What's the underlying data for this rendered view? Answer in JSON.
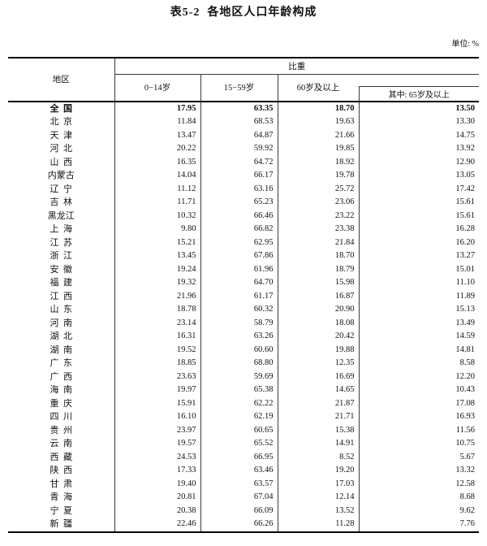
{
  "title": "表5-2  各地区人口年龄构成",
  "unit_label": "单位: %",
  "table": {
    "region_header": "地区",
    "group_header": "比重",
    "col_headers": [
      "0−14岁",
      "15−59岁",
      "60岁及以上",
      "其中: 65岁及以上"
    ],
    "rows": [
      {
        "region": "全  国",
        "bold": true,
        "values": [
          "17.95",
          "63.35",
          "18.70",
          "13.50"
        ]
      },
      {
        "region": "北  京",
        "bold": false,
        "values": [
          "11.84",
          "68.53",
          "19.63",
          "13.30"
        ]
      },
      {
        "region": "天  津",
        "bold": false,
        "values": [
          "13.47",
          "64.87",
          "21.66",
          "14.75"
        ]
      },
      {
        "region": "河  北",
        "bold": false,
        "values": [
          "20.22",
          "59.92",
          "19.85",
          "13.92"
        ]
      },
      {
        "region": "山  西",
        "bold": false,
        "values": [
          "16.35",
          "64.72",
          "18.92",
          "12.90"
        ]
      },
      {
        "region": "内蒙古",
        "bold": false,
        "values": [
          "14.04",
          "66.17",
          "19.78",
          "13.05"
        ]
      },
      {
        "region": "辽  宁",
        "bold": false,
        "values": [
          "11.12",
          "63.16",
          "25.72",
          "17.42"
        ]
      },
      {
        "region": "吉  林",
        "bold": false,
        "values": [
          "11.71",
          "65.23",
          "23.06",
          "15.61"
        ]
      },
      {
        "region": "黑龙江",
        "bold": false,
        "values": [
          "10.32",
          "66.46",
          "23.22",
          "15.61"
        ]
      },
      {
        "region": "上  海",
        "bold": false,
        "values": [
          "9.80",
          "66.82",
          "23.38",
          "16.28"
        ]
      },
      {
        "region": "江  苏",
        "bold": false,
        "values": [
          "15.21",
          "62.95",
          "21.84",
          "16.20"
        ]
      },
      {
        "region": "浙  江",
        "bold": false,
        "values": [
          "13.45",
          "67.86",
          "18.70",
          "13.27"
        ]
      },
      {
        "region": "安  徽",
        "bold": false,
        "values": [
          "19.24",
          "61.96",
          "18.79",
          "15.01"
        ]
      },
      {
        "region": "福  建",
        "bold": false,
        "values": [
          "19.32",
          "64.70",
          "15.98",
          "11.10"
        ]
      },
      {
        "region": "江  西",
        "bold": false,
        "values": [
          "21.96",
          "61.17",
          "16.87",
          "11.89"
        ]
      },
      {
        "region": "山  东",
        "bold": false,
        "values": [
          "18.78",
          "60.32",
          "20.90",
          "15.13"
        ]
      },
      {
        "region": "河  南",
        "bold": false,
        "values": [
          "23.14",
          "58.79",
          "18.08",
          "13.49"
        ]
      },
      {
        "region": "湖  北",
        "bold": false,
        "values": [
          "16.31",
          "63.26",
          "20.42",
          "14.59"
        ]
      },
      {
        "region": "湖  南",
        "bold": false,
        "values": [
          "19.52",
          "60.60",
          "19.88",
          "14.81"
        ]
      },
      {
        "region": "广  东",
        "bold": false,
        "values": [
          "18.85",
          "68.80",
          "12.35",
          "8.58"
        ]
      },
      {
        "region": "广  西",
        "bold": false,
        "values": [
          "23.63",
          "59.69",
          "16.69",
          "12.20"
        ]
      },
      {
        "region": "海  南",
        "bold": false,
        "values": [
          "19.97",
          "65.38",
          "14.65",
          "10.43"
        ]
      },
      {
        "region": "重  庆",
        "bold": false,
        "values": [
          "15.91",
          "62.22",
          "21.87",
          "17.08"
        ]
      },
      {
        "region": "四  川",
        "bold": false,
        "values": [
          "16.10",
          "62.19",
          "21.71",
          "16.93"
        ]
      },
      {
        "region": "贵  州",
        "bold": false,
        "values": [
          "23.97",
          "60.65",
          "15.38",
          "11.56"
        ]
      },
      {
        "region": "云  南",
        "bold": false,
        "values": [
          "19.57",
          "65.52",
          "14.91",
          "10.75"
        ]
      },
      {
        "region": "西  藏",
        "bold": false,
        "values": [
          "24.53",
          "66.95",
          "8.52",
          "5.67"
        ]
      },
      {
        "region": "陕  西",
        "bold": false,
        "values": [
          "17.33",
          "63.46",
          "19.20",
          "13.32"
        ]
      },
      {
        "region": "甘  肃",
        "bold": false,
        "values": [
          "19.40",
          "63.57",
          "17.03",
          "12.58"
        ]
      },
      {
        "region": "青  海",
        "bold": false,
        "values": [
          "20.81",
          "67.04",
          "12.14",
          "8.68"
        ]
      },
      {
        "region": "宁  夏",
        "bold": false,
        "values": [
          "20.38",
          "66.09",
          "13.52",
          "9.62"
        ]
      },
      {
        "region": "新  疆",
        "bold": false,
        "values": [
          "22.46",
          "66.26",
          "11.28",
          "7.76"
        ]
      }
    ]
  }
}
